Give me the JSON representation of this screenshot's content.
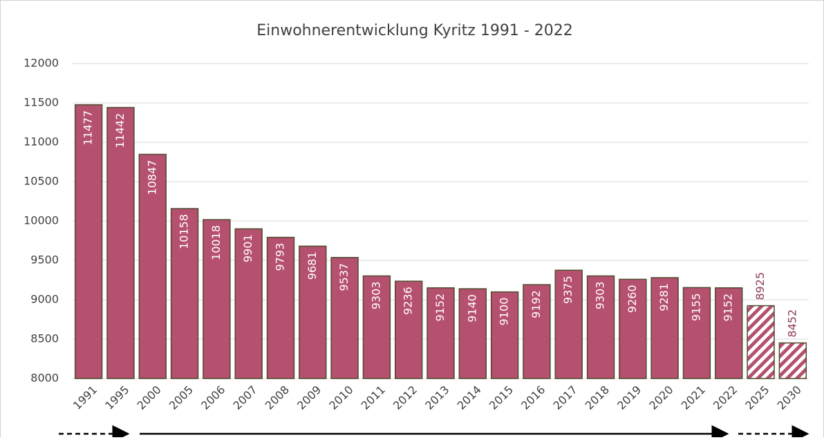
{
  "chart_data": {
    "type": "bar",
    "title": "Einwohnerentwicklung Kyritz 1991 - 2022",
    "categories": [
      "1991",
      "1995",
      "2000",
      "2005",
      "2006",
      "2007",
      "2008",
      "2009",
      "2010",
      "2011",
      "2012",
      "2013",
      "2014",
      "2015",
      "2016",
      "2017",
      "2018",
      "2019",
      "2020",
      "2021",
      "2022",
      "2025",
      "2030"
    ],
    "values": [
      11477,
      11442,
      10847,
      10158,
      10018,
      9901,
      9793,
      9681,
      9537,
      9303,
      9236,
      9152,
      9140,
      9100,
      9192,
      9375,
      9303,
      9260,
      9281,
      9155,
      9152,
      8925,
      8452
    ],
    "patterns": [
      "solid",
      "solid",
      "solid",
      "solid",
      "solid",
      "solid",
      "solid",
      "solid",
      "solid",
      "solid",
      "solid",
      "solid",
      "solid",
      "solid",
      "solid",
      "solid",
      "solid",
      "solid",
      "solid",
      "solid",
      "solid",
      "hatched",
      "hatched"
    ],
    "color": "#b5506f",
    "edge_color": "#4d4a2c",
    "ylim": [
      8000,
      12000
    ],
    "yticks": [
      8000,
      8500,
      9000,
      9500,
      10000,
      10500,
      11000,
      11500,
      12000
    ],
    "grid": true
  }
}
